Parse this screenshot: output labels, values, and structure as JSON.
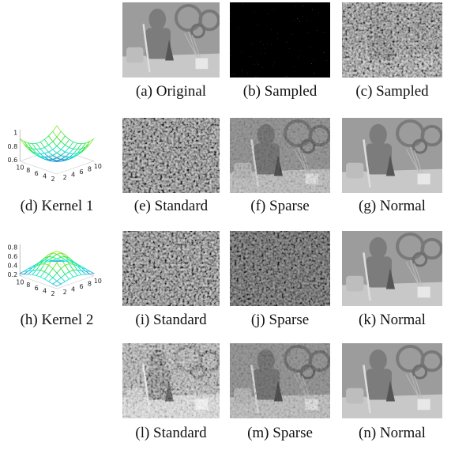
{
  "figure": {
    "panels": [
      {
        "caption": "(a) Original"
      },
      {
        "caption": "(b) Sampled"
      },
      {
        "caption": "(c) Sampled"
      },
      {
        "caption": "(e) Standard"
      },
      {
        "caption": "(f) Sparse"
      },
      {
        "caption": "(g) Normal"
      },
      {
        "caption": "(i) Standard"
      },
      {
        "caption": "(j) Sparse"
      },
      {
        "caption": "(k) Normal"
      },
      {
        "caption": "(l) Standard"
      },
      {
        "caption": "(m) Sparse"
      },
      {
        "caption": "(n) Normal"
      }
    ],
    "kernels": [
      {
        "caption": "(d) Kernel 1",
        "zticks": [
          "1",
          "0.8",
          "0.6"
        ],
        "xticks": [
          "10",
          "8",
          "6",
          "4",
          "2"
        ],
        "yticks": [
          "2",
          "4",
          "6",
          "8",
          "10"
        ]
      },
      {
        "caption": "(h) Kernel 2",
        "zticks": [
          "0.8",
          "0.6",
          "0.4",
          "0.2"
        ],
        "xticks": [
          "10",
          "8",
          "6",
          "4",
          "2"
        ],
        "yticks": [
          "2",
          "4",
          "6",
          "8",
          "10"
        ]
      }
    ]
  }
}
